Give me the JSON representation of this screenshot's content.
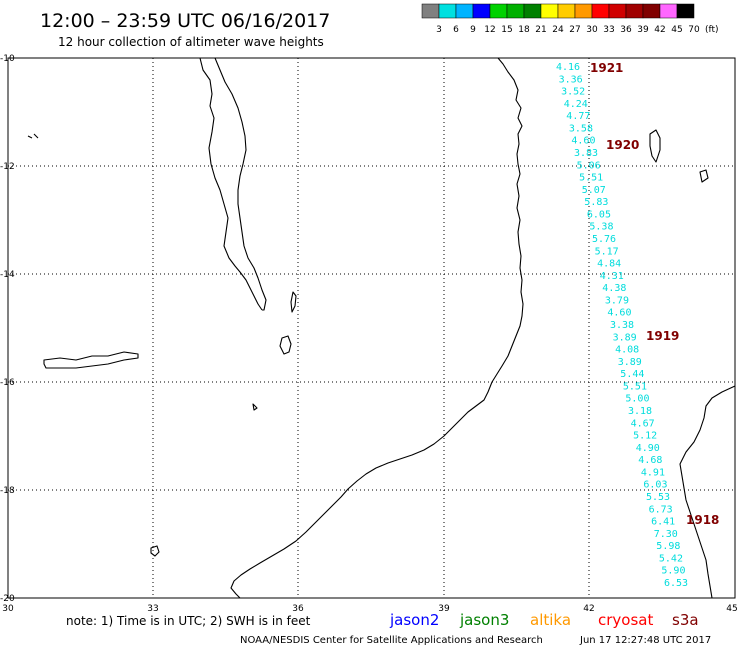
{
  "header": {
    "title": "12:00 – 23:59 UTC 06/16/2017",
    "subtitle": "12 hour collection of altimeter wave heights"
  },
  "legend": {
    "unit": "(ft)",
    "bins": [
      {
        "label": "3",
        "color": "#808080"
      },
      {
        "label": "6",
        "color": "#00e0e0"
      },
      {
        "label": "9",
        "color": "#00b4ff"
      },
      {
        "label": "12",
        "color": "#0000ff"
      },
      {
        "label": "15",
        "color": "#00d200"
      },
      {
        "label": "18",
        "color": "#00b000"
      },
      {
        "label": "21",
        "color": "#008000"
      },
      {
        "label": "24",
        "color": "#ffff00"
      },
      {
        "label": "27",
        "color": "#ffcc00"
      },
      {
        "label": "30",
        "color": "#ff9900"
      },
      {
        "label": "33",
        "color": "#ff0000"
      },
      {
        "label": "36",
        "color": "#d00000"
      },
      {
        "label": "39",
        "color": "#a00000"
      },
      {
        "label": "42",
        "color": "#800000"
      },
      {
        "label": "45",
        "color": "#ff66ff"
      },
      {
        "label": "70",
        "color": "#000000"
      }
    ]
  },
  "axes": {
    "lat_labels": [
      "-10",
      "-12",
      "-14",
      "-16",
      "-18",
      "-20"
    ],
    "lon_labels": [
      "30",
      "33",
      "36",
      "39",
      "42",
      "45"
    ]
  },
  "colors": {
    "swh_text": "#00dcdc",
    "pass_label": "#800000",
    "coast": "#000000",
    "grid": "#000000"
  },
  "passes": [
    "1921",
    "1920",
    "1919",
    "1918"
  ],
  "wave_heights": {
    "track_a": [
      "4.16",
      "3.36",
      "3.52",
      "4.24",
      "4.77",
      "3.58",
      "4.60",
      "3.83",
      "5.06",
      "5.51",
      "5.07",
      "5.83",
      "6.05",
      "5.38",
      "5.76",
      "5.17",
      "4.84",
      "4.31",
      "4.38",
      "3.79",
      "4.60",
      "3.38",
      "3.89",
      "4.08",
      "3.89",
      "5.44",
      "5.51",
      "5.00",
      "3.18",
      "4.67",
      "5.12",
      "4.90",
      "4.68",
      "4.91",
      "6.03",
      "5.53",
      "6.73",
      "6.41",
      "7.30",
      "5.98",
      "5.42",
      "5.90",
      "6.53"
    ]
  },
  "footer": {
    "note": "note:  1) Time is in UTC;  2) SWH is in feet",
    "satellites": [
      {
        "name": "jason2",
        "color": "#0000ff"
      },
      {
        "name": "jason3",
        "color": "#008000"
      },
      {
        "name": "altika",
        "color": "#ff9900"
      },
      {
        "name": "cryosat",
        "color": "#ff0000"
      },
      {
        "name": "s3a",
        "color": "#800000"
      }
    ],
    "credit": "NOAA/NESDIS Center for Satellite Applications and Research",
    "timestamp": "Jun 17 12:27:48 UTC 2017"
  }
}
